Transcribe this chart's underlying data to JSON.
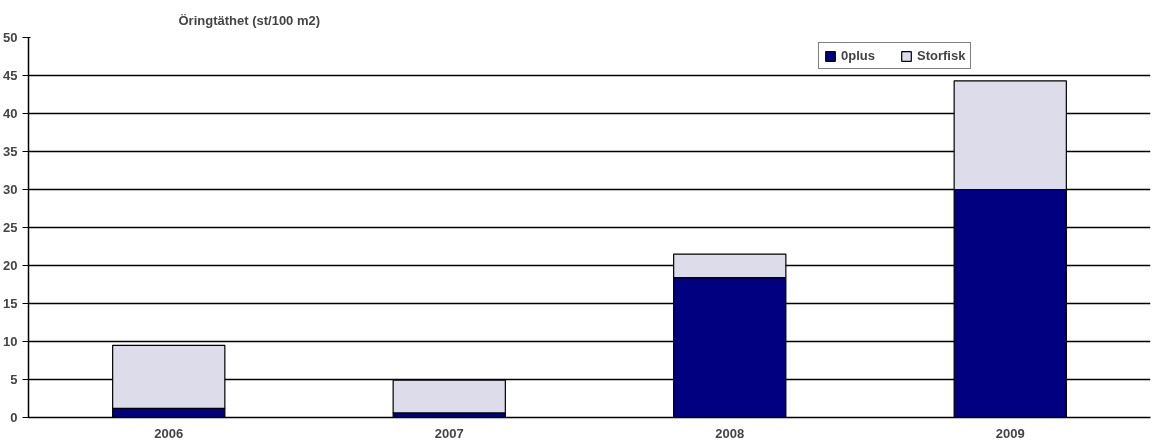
{
  "chart_data": {
    "type": "bar",
    "title": "Öringtäthet (st/100 m2)",
    "categories": [
      "2006",
      "2007",
      "2008",
      "2009"
    ],
    "series": [
      {
        "name": "0plus",
        "color": "#000080",
        "values": [
          1.2,
          0.6,
          18.4,
          30
        ]
      },
      {
        "name": "Storfisk",
        "color": "#dcdcea",
        "values": [
          8.3,
          4.3,
          3.1,
          14.3
        ]
      }
    ],
    "stacked": true,
    "ylim": [
      0,
      50
    ],
    "yticks": [
      0,
      5,
      10,
      15,
      20,
      25,
      30,
      35,
      40,
      45,
      50
    ],
    "grid": "y",
    "legend": "top right"
  }
}
